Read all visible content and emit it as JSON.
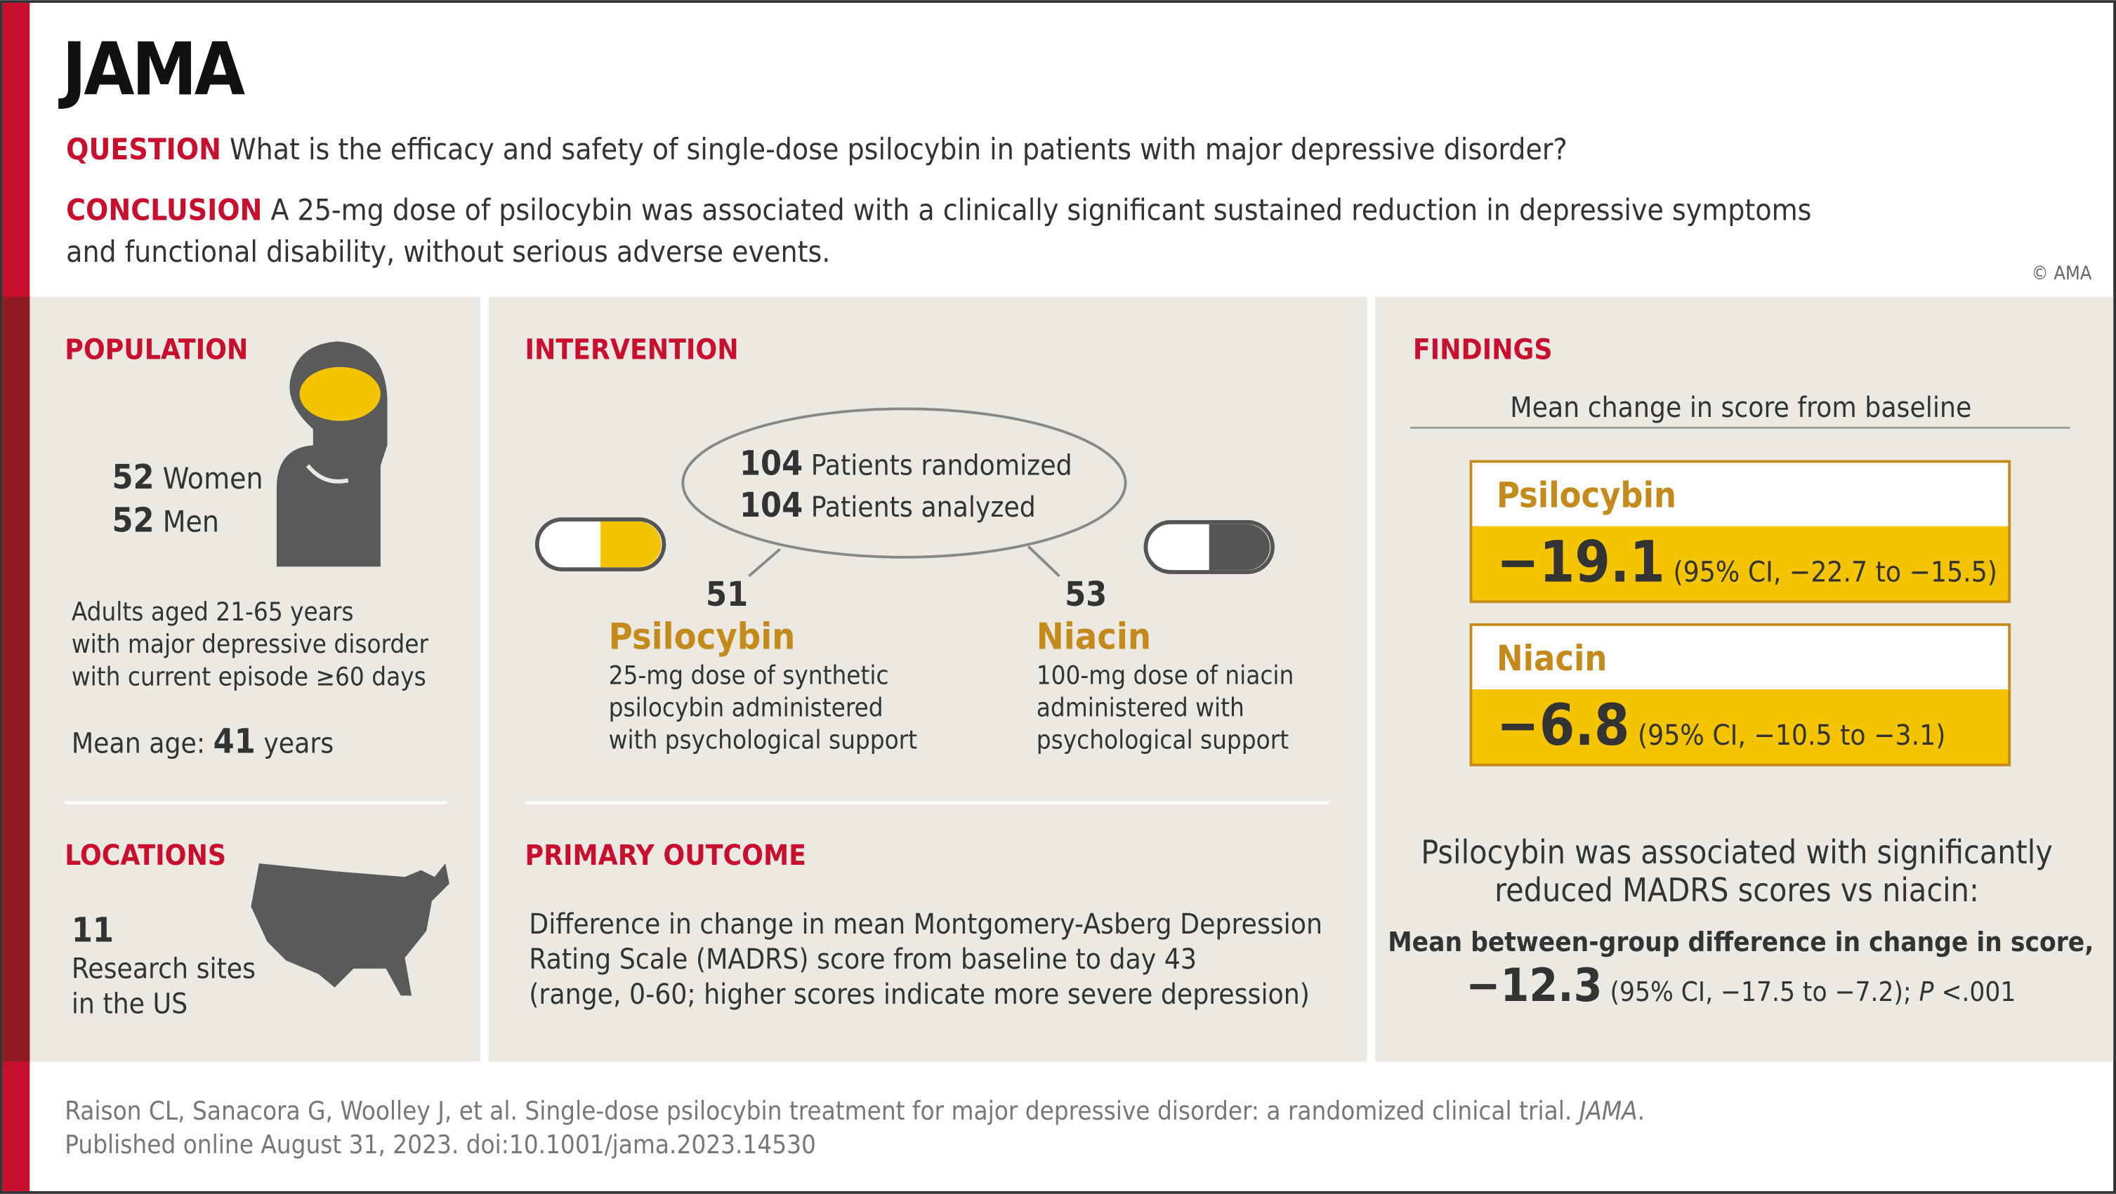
{
  "header": {
    "logo": "JAMA",
    "question_label": "QUESTION",
    "question": "What is the efficacy and safety of single-dose psilocybin in patients with major depressive disorder?",
    "conclusion_label": "CONCLUSION",
    "conclusion_lines": [
      "A 25-mg dose of psilocybin was associated with a clinically significant sustained reduction in depressive symptoms",
      "and functional disability, without serious adverse events."
    ],
    "copyright": "© AMA"
  },
  "population": {
    "heading": "POPULATION",
    "women_count": "52",
    "women_label": "Women",
    "men_count": "52",
    "men_label": "Men",
    "description_lines": [
      "Adults aged 21-65 years",
      "with major depressive disorder",
      "with current episode ≥60 days"
    ],
    "mean_age_label": "Mean age:",
    "mean_age": "41",
    "mean_age_unit": "years"
  },
  "locations": {
    "heading": "LOCATIONS",
    "count": "11",
    "lines": [
      "Research sites",
      "in the US"
    ]
  },
  "intervention": {
    "heading": "INTERVENTION",
    "randomized_count": "104",
    "randomized_label": "Patients randomized",
    "analyzed_count": "104",
    "analyzed_label": "Patients analyzed",
    "arms": [
      {
        "count": "51",
        "name": "Psilocybin",
        "lines": [
          "25-mg dose of synthetic",
          "psilocybin administered",
          "with psychological support"
        ]
      },
      {
        "count": "53",
        "name": "Niacin",
        "lines": [
          "100-mg dose of niacin",
          "administered with",
          "psychological support"
        ]
      }
    ]
  },
  "primary_outcome": {
    "heading": "PRIMARY OUTCOME",
    "lines": [
      "Difference in change in mean Montgomery-Asberg Depression",
      "Rating Scale (MADRS) score from baseline to day 43",
      "(range, 0-60; higher scores indicate more severe depression)"
    ]
  },
  "findings": {
    "heading": "FINDINGS",
    "subtitle": "Mean change in score from baseline",
    "groups": [
      {
        "name": "Psilocybin",
        "value": "−19.1",
        "ci": "(95% CI, −22.7 to −15.5)"
      },
      {
        "name": "Niacin",
        "value": "−6.8",
        "ci": "(95% CI, −10.5 to −3.1)"
      }
    ],
    "statement_lines": [
      "Psilocybin was associated with significantly",
      "reduced MADRS scores vs niacin:"
    ],
    "difference_label": "Mean between-group difference in change in score,",
    "difference_value": "−12.3",
    "difference_ci": "(95% CI, −17.5 to −7.2);",
    "p_label": "P",
    "p_value": "<.001"
  },
  "citation": {
    "line1": "Raison CL, Sanacora G, Woolley J, et al. Single-dose psilocybin treatment for major depressive disorder: a randomized clinical trial.",
    "journal": "JAMA",
    "line1_end": ".",
    "line2": "Published online August 31, 2023. doi:10.1001/jama.2023.14530"
  }
}
